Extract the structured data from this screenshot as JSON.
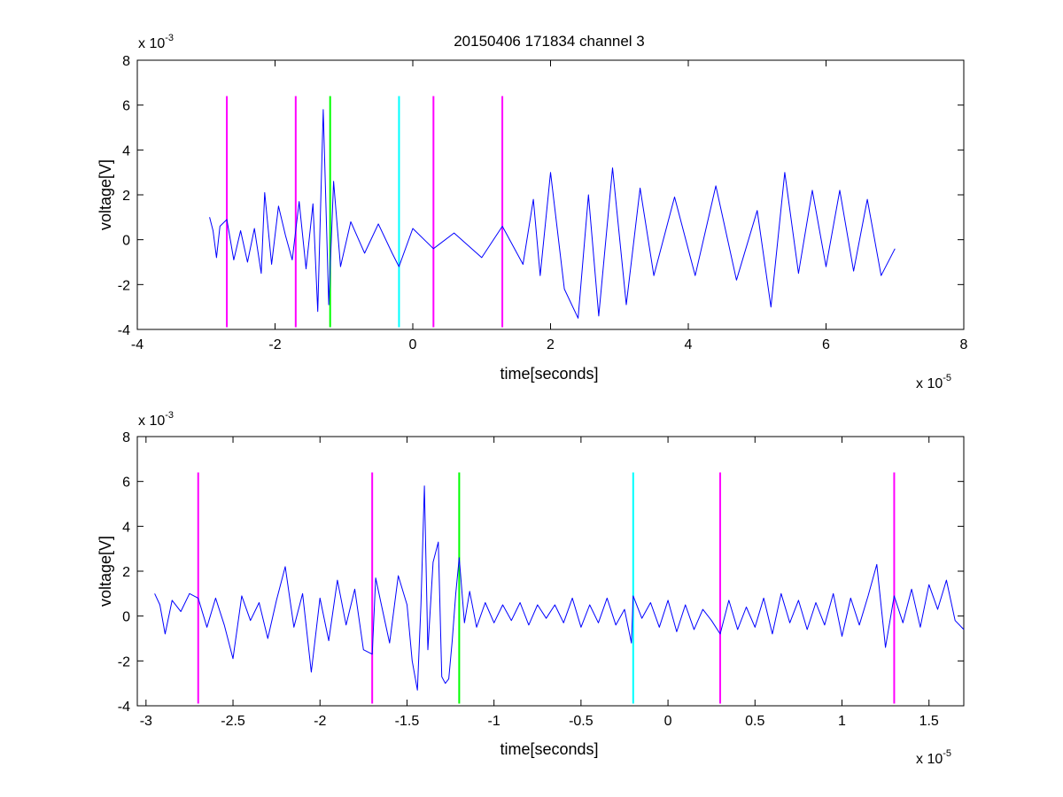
{
  "figure": {
    "title": "20150406 171834 channel 3",
    "axes": [
      {
        "name": "top",
        "xlabel": "time[seconds]",
        "ylabel": "voltage[V]",
        "x_exp_base": "x 10",
        "x_exp_power": "-5",
        "y_exp_base": "x 10",
        "y_exp_power": "-3"
      },
      {
        "name": "bottom",
        "xlabel": "time[seconds]",
        "ylabel": "voltage[V]",
        "x_exp_base": "x 10",
        "x_exp_power": "-5",
        "y_exp_base": "x 10",
        "y_exp_power": "-3"
      }
    ]
  },
  "chart_data": [
    {
      "type": "line",
      "title": "20150406 171834 channel 3",
      "xlabel": "time[seconds]",
      "ylabel": "voltage[V]",
      "x_scale_note": "x 10^-5",
      "y_scale_note": "x 10^-3",
      "xlim": [
        -4,
        8
      ],
      "ylim": [
        -4,
        8
      ],
      "xticks": [
        -4,
        -2,
        0,
        2,
        4,
        6,
        8
      ],
      "xtick_labels": [
        "-4",
        "-2",
        "0",
        "2",
        "4",
        "6",
        "8"
      ],
      "yticks": [
        -4,
        -2,
        0,
        2,
        4,
        6,
        8
      ],
      "ytick_labels": [
        "-4",
        "-2",
        "0",
        "2",
        "4",
        "6",
        "8"
      ],
      "grid": false,
      "series": [
        {
          "color": "#0000ff",
          "x": [
            -2.95,
            -2.9,
            -2.85,
            -2.8,
            -2.7,
            -2.6,
            -2.5,
            -2.4,
            -2.3,
            -2.2,
            -2.15,
            -2.05,
            -1.95,
            -1.85,
            -1.75,
            -1.65,
            -1.55,
            -1.45,
            -1.38,
            -1.3,
            -1.22,
            -1.15,
            -1.05,
            -0.9,
            -0.7,
            -0.5,
            -0.3,
            -0.2,
            0.0,
            0.3,
            0.6,
            1.0,
            1.3,
            1.6,
            1.75,
            1.85,
            2.0,
            2.2,
            2.4,
            2.55,
            2.7,
            2.9,
            3.1,
            3.3,
            3.5,
            3.8,
            4.1,
            4.4,
            4.7,
            5.0,
            5.2,
            5.4,
            5.6,
            5.8,
            6.0,
            6.2,
            6.4,
            6.6,
            6.8,
            7.0
          ],
          "y": [
            1.0,
            0.4,
            -0.8,
            0.6,
            0.9,
            -0.9,
            0.4,
            -1.0,
            0.5,
            -1.5,
            2.1,
            -1.1,
            1.5,
            0.2,
            -0.9,
            1.7,
            -1.3,
            1.6,
            -3.2,
            5.8,
            -2.9,
            2.6,
            -1.2,
            0.8,
            -0.6,
            0.7,
            -0.6,
            -1.2,
            0.5,
            -0.4,
            0.3,
            -0.8,
            0.6,
            -1.1,
            1.8,
            -1.6,
            3.0,
            -2.2,
            -3.5,
            2.0,
            -3.4,
            3.2,
            -2.9,
            2.3,
            -1.6,
            1.9,
            -1.6,
            2.4,
            -1.8,
            1.3,
            -3.0,
            3.0,
            -1.5,
            2.2,
            -1.2,
            2.2,
            -1.4,
            1.8,
            -1.6,
            -0.4
          ]
        }
      ],
      "vlines": [
        {
          "x": -2.7,
          "color": "#ff00ff",
          "y_range": [
            -3.9,
            6.4
          ]
        },
        {
          "x": -1.7,
          "color": "#ff00ff",
          "y_range": [
            -3.9,
            6.4
          ]
        },
        {
          "x": -1.2,
          "color": "#00ff00",
          "y_range": [
            -3.9,
            6.4
          ]
        },
        {
          "x": -0.2,
          "color": "#00ffff",
          "y_range": [
            -3.9,
            6.4
          ]
        },
        {
          "x": 0.3,
          "color": "#ff00ff",
          "y_range": [
            -3.9,
            6.4
          ]
        },
        {
          "x": 1.3,
          "color": "#ff00ff",
          "y_range": [
            -3.9,
            6.4
          ]
        }
      ]
    },
    {
      "type": "line",
      "title": "",
      "xlabel": "time[seconds]",
      "ylabel": "voltage[V]",
      "x_scale_note": "x 10^-5",
      "y_scale_note": "x 10^-3",
      "xlim": [
        -3.05,
        1.7
      ],
      "ylim": [
        -4,
        8
      ],
      "xticks": [
        -3,
        -2.5,
        -2,
        -1.5,
        -1,
        -0.5,
        0,
        0.5,
        1,
        1.5
      ],
      "xtick_labels": [
        "-3",
        "-2.5",
        "-2",
        "-1.5",
        "-1",
        "-0.5",
        "0",
        "0.5",
        "1",
        "1.5"
      ],
      "yticks": [
        -4,
        -2,
        0,
        2,
        4,
        6,
        8
      ],
      "ytick_labels": [
        "-4",
        "-2",
        "0",
        "2",
        "4",
        "6",
        "8"
      ],
      "grid": false,
      "series": [
        {
          "color": "#0000ff",
          "x": [
            -2.95,
            -2.92,
            -2.89,
            -2.85,
            -2.8,
            -2.75,
            -2.7,
            -2.65,
            -2.6,
            -2.55,
            -2.5,
            -2.45,
            -2.4,
            -2.35,
            -2.3,
            -2.25,
            -2.2,
            -2.15,
            -2.1,
            -2.05,
            -2.0,
            -1.95,
            -1.9,
            -1.85,
            -1.8,
            -1.75,
            -1.7,
            -1.68,
            -1.65,
            -1.6,
            -1.55,
            -1.5,
            -1.47,
            -1.44,
            -1.42,
            -1.4,
            -1.38,
            -1.35,
            -1.32,
            -1.3,
            -1.28,
            -1.26,
            -1.24,
            -1.22,
            -1.2,
            -1.17,
            -1.14,
            -1.1,
            -1.05,
            -1.0,
            -0.95,
            -0.9,
            -0.85,
            -0.8,
            -0.75,
            -0.7,
            -0.65,
            -0.6,
            -0.55,
            -0.5,
            -0.45,
            -0.4,
            -0.35,
            -0.3,
            -0.25,
            -0.21,
            -0.2,
            -0.15,
            -0.1,
            -0.05,
            0.0,
            0.05,
            0.1,
            0.15,
            0.2,
            0.25,
            0.3,
            0.35,
            0.4,
            0.45,
            0.5,
            0.55,
            0.6,
            0.65,
            0.7,
            0.75,
            0.8,
            0.85,
            0.9,
            0.95,
            1.0,
            1.05,
            1.1,
            1.15,
            1.2,
            1.25,
            1.3,
            1.35,
            1.4,
            1.45,
            1.5,
            1.55,
            1.6,
            1.65,
            1.7
          ],
          "y": [
            1.0,
            0.5,
            -0.8,
            0.7,
            0.2,
            1.0,
            0.8,
            -0.5,
            0.8,
            -0.4,
            -1.9,
            0.9,
            -0.2,
            0.6,
            -1.0,
            0.7,
            2.2,
            -0.5,
            1.0,
            -2.5,
            0.8,
            -1.1,
            1.6,
            -0.4,
            1.2,
            -1.5,
            -1.7,
            1.7,
            0.6,
            -1.2,
            1.8,
            0.5,
            -2.0,
            -3.3,
            0.5,
            5.8,
            -1.5,
            2.4,
            3.3,
            -2.7,
            -3.0,
            -2.8,
            -1.1,
            1.0,
            2.6,
            -0.3,
            1.1,
            -0.5,
            0.6,
            -0.3,
            0.5,
            -0.2,
            0.6,
            -0.4,
            0.5,
            -0.1,
            0.5,
            -0.3,
            0.8,
            -0.5,
            0.5,
            -0.3,
            0.8,
            -0.4,
            0.3,
            -1.2,
            0.9,
            -0.1,
            0.6,
            -0.5,
            0.7,
            -0.7,
            0.5,
            -0.6,
            0.3,
            -0.2,
            -0.8,
            0.7,
            -0.6,
            0.4,
            -0.5,
            0.8,
            -0.8,
            1.0,
            -0.3,
            0.7,
            -0.6,
            0.6,
            -0.4,
            1.0,
            -0.9,
            0.8,
            -0.4,
            0.9,
            2.3,
            -1.4,
            0.9,
            -0.3,
            1.2,
            -0.5,
            1.4,
            0.3,
            1.6,
            -0.2,
            -0.6
          ]
        }
      ],
      "vlines": [
        {
          "x": -2.7,
          "color": "#ff00ff",
          "y_range": [
            -3.9,
            6.4
          ]
        },
        {
          "x": -1.7,
          "color": "#ff00ff",
          "y_range": [
            -3.9,
            6.4
          ]
        },
        {
          "x": -1.2,
          "color": "#00ff00",
          "y_range": [
            -3.9,
            6.4
          ]
        },
        {
          "x": -0.2,
          "color": "#00ffff",
          "y_range": [
            -3.9,
            6.4
          ]
        },
        {
          "x": 0.3,
          "color": "#ff00ff",
          "y_range": [
            -3.9,
            6.4
          ]
        },
        {
          "x": 1.3,
          "color": "#ff00ff",
          "y_range": [
            -3.9,
            6.4
          ]
        }
      ]
    }
  ]
}
